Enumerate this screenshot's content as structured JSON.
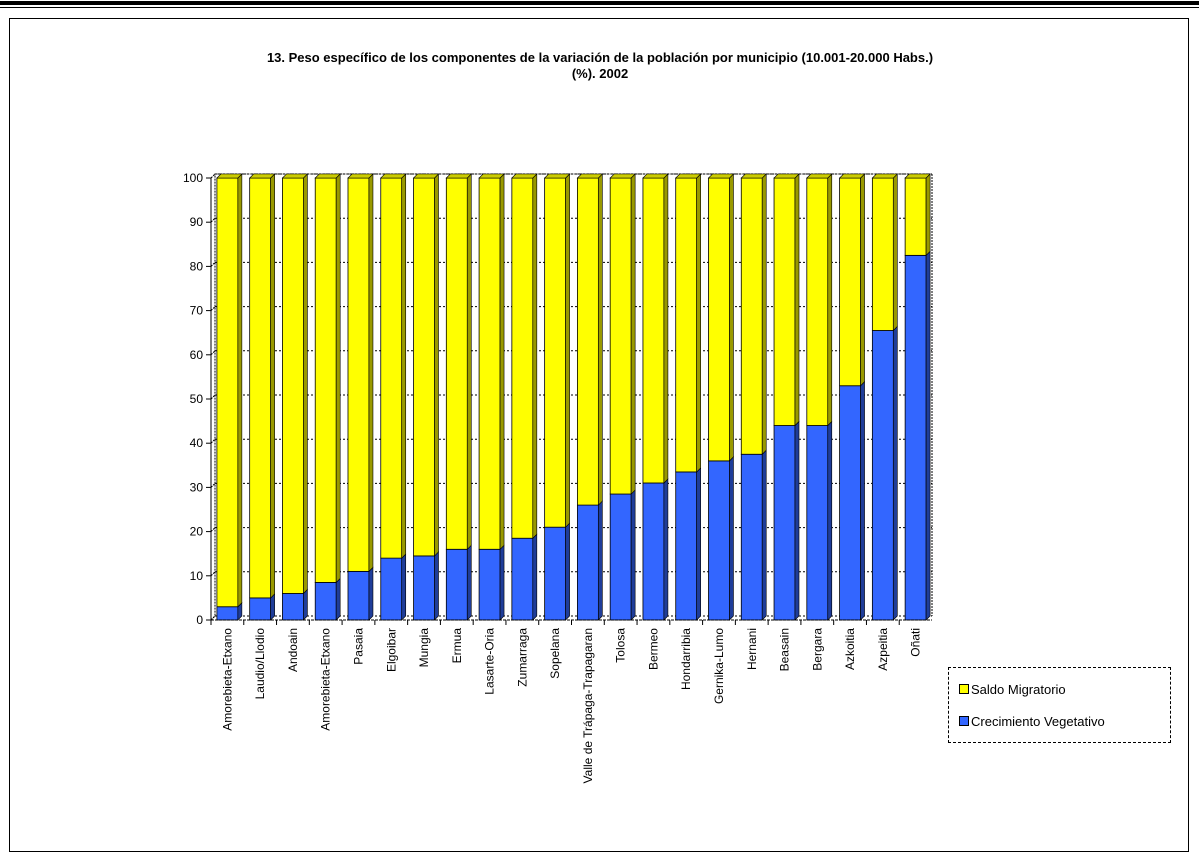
{
  "title_line1": "13. Peso específico de los componentes de la variación de la población por municipio (10.001-20.000 Habs.)",
  "title_line2": "(%). 2002",
  "legend": [
    {
      "label": "Saldo Migratorio",
      "color": "#FFFF00"
    },
    {
      "label": "Crecimiento Vegetativo",
      "color": "#3366FF"
    }
  ],
  "chart_data": {
    "type": "bar",
    "stacked": true,
    "title": "13. Peso específico de los componentes de la variación de la población por municipio (10.001-20.000 Habs.) (%). 2002",
    "xlabel": "",
    "ylabel": "",
    "ylim": [
      0,
      100
    ],
    "yticks": [
      0,
      10,
      20,
      30,
      40,
      50,
      60,
      70,
      80,
      90,
      100
    ],
    "grid": true,
    "legend_position": "right",
    "categories": [
      "Amorebieta-Etxano",
      "Laudio/Llodio",
      "Andoain",
      "Amorebieta-Etxano",
      "Pasaia",
      "Elgoibar",
      "Mungia",
      "Ermua",
      "Lasarte-Oria",
      "Zumarraga",
      "Sopelana",
      "Valle de Trápaga-Trapagaran",
      "Tolosa",
      "Bermeo",
      "Hondarribia",
      "Gernika-Lumo",
      "Hernani",
      "Beasain",
      "Bergara",
      "Azkoitia",
      "Azpeitia",
      "Oñati"
    ],
    "series": [
      {
        "name": "Crecimiento Vegetativo",
        "color": "#3366FF",
        "values": [
          3,
          5,
          6,
          8.5,
          11,
          14,
          14.5,
          16,
          16,
          18.5,
          21,
          26,
          28.5,
          31,
          33.5,
          36,
          37.5,
          44,
          44,
          53,
          65.5,
          82.5
        ]
      },
      {
        "name": "Saldo Migratorio",
        "color": "#FFFF00",
        "values": [
          97,
          95,
          94,
          91.5,
          89,
          86,
          85.5,
          84,
          84,
          81.5,
          79,
          74,
          71.5,
          69,
          66.5,
          64,
          62.5,
          56,
          56,
          47,
          34.5,
          17.5
        ]
      }
    ]
  }
}
